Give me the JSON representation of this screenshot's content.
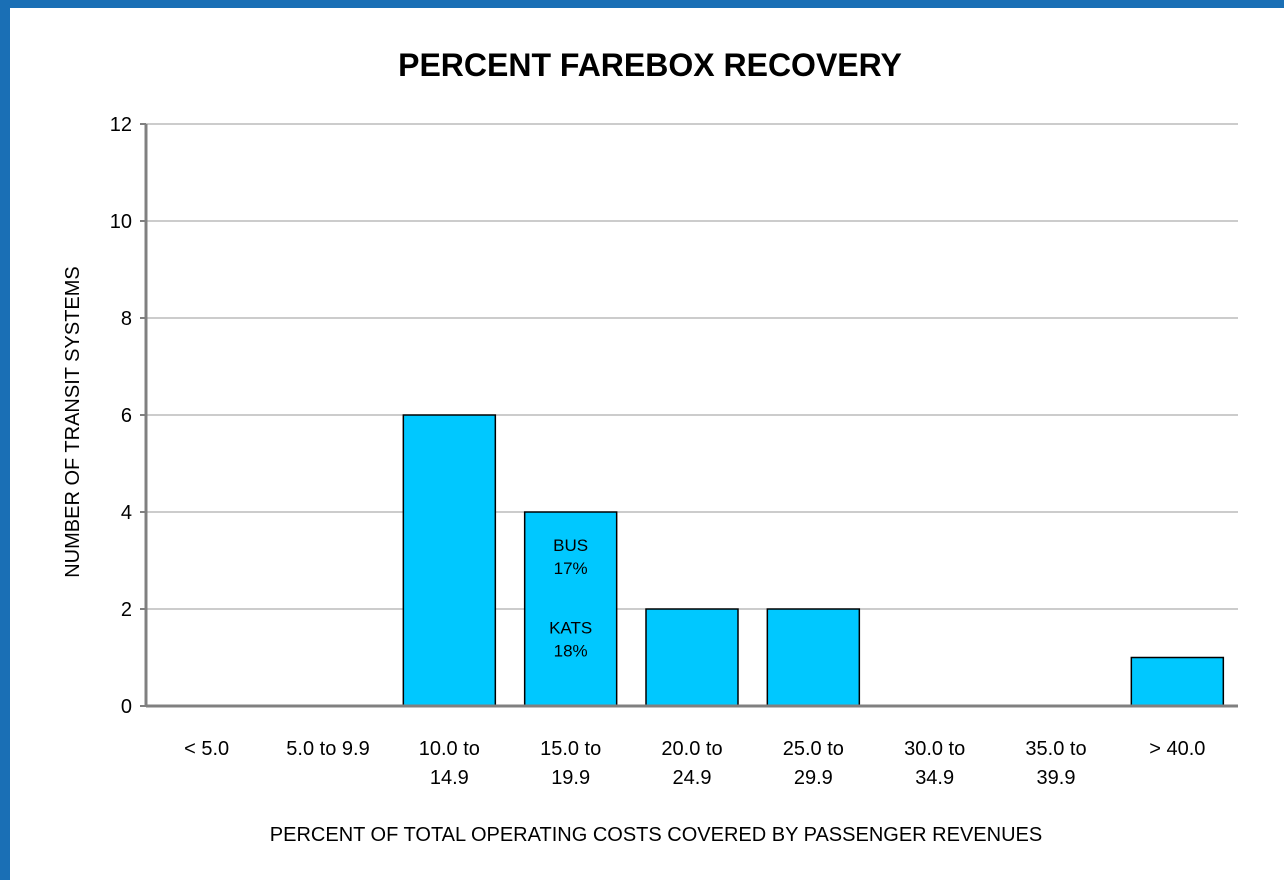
{
  "chart_data": {
    "type": "bar",
    "title": "PERCENT FAREBOX RECOVERY",
    "xlabel": "PERCENT OF TOTAL OPERATING COSTS COVERED BY PASSENGER REVENUES",
    "ylabel": "NUMBER OF TRANSIT SYSTEMS",
    "categories": [
      [
        "< 5.0"
      ],
      [
        "5.0 to 9.9"
      ],
      [
        "10.0 to",
        "14.9"
      ],
      [
        "15.0 to",
        "19.9"
      ],
      [
        "20.0 to",
        "24.9"
      ],
      [
        "25.0 to",
        "29.9"
      ],
      [
        "30.0 to",
        "34.9"
      ],
      [
        "35.0 to",
        "39.9"
      ],
      [
        "> 40.0"
      ]
    ],
    "values": [
      0,
      0,
      6,
      4,
      2,
      2,
      0,
      0,
      1
    ],
    "ylim": [
      0,
      12
    ],
    "yticks": [
      0,
      2,
      4,
      6,
      8,
      10,
      12
    ],
    "grid": true,
    "bar_color": "#00c8ff",
    "annotations": [
      {
        "category_index": 3,
        "lines": [
          "BUS",
          "17%"
        ],
        "y_value": 3.2
      },
      {
        "category_index": 3,
        "lines": [
          "KATS",
          "18%"
        ],
        "y_value": 1.5
      }
    ]
  }
}
